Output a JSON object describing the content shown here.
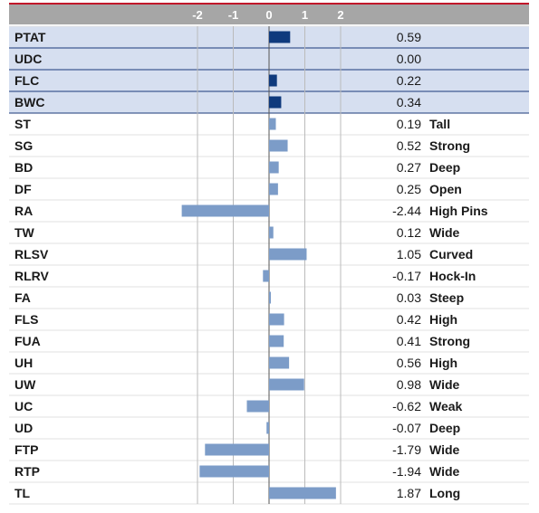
{
  "chart_data": {
    "type": "bar",
    "orientation": "horizontal",
    "xlim": [
      -2.5,
      2.5
    ],
    "xticks": [
      -2,
      -1,
      0,
      1,
      2
    ],
    "xtick_labels": [
      "-2",
      "-1",
      "0",
      "1",
      "2"
    ],
    "categories": [
      "PTAT",
      "UDC",
      "FLC",
      "BWC",
      "ST",
      "SG",
      "BD",
      "DF",
      "RA",
      "TW",
      "RLSV",
      "RLRV",
      "FA",
      "FLS",
      "FUA",
      "UH",
      "UW",
      "UC",
      "UD",
      "FTP",
      "RTP",
      "TL"
    ],
    "values": [
      0.59,
      0.0,
      0.22,
      0.34,
      0.19,
      0.52,
      0.27,
      0.25,
      -2.44,
      0.12,
      1.05,
      -0.17,
      0.03,
      0.42,
      0.41,
      0.56,
      0.98,
      -0.62,
      -0.07,
      -1.79,
      -1.94,
      1.87
    ],
    "value_labels": [
      "0.59",
      "0.00",
      "0.22",
      "0.34",
      "0.19",
      "0.52",
      "0.27",
      "0.25",
      "-2.44",
      "0.12",
      "1.05",
      "-0.17",
      "0.03",
      "0.42",
      "0.41",
      "0.56",
      "0.98",
      "-0.62",
      "-0.07",
      "-1.79",
      "-1.94",
      "1.87"
    ],
    "descriptors": [
      "",
      "",
      "",
      "",
      "Tall",
      "Strong",
      "Deep",
      "Open",
      "High Pins",
      "Wide",
      "Curved",
      "Hock-In",
      "Steep",
      "High",
      "Strong",
      "High",
      "Wide",
      "Weak",
      "Deep",
      "Wide",
      "Wide",
      "Long"
    ],
    "highlighted_rows": 4,
    "grid": true,
    "colors": {
      "header_bg": "#a6a6a6",
      "header_top_line": "#c0152a",
      "highlight_bg": "#d6dff0",
      "highlight_bar": "#0f3a7d",
      "bar": "#7c9cc8",
      "row_border": "#1b3a7a",
      "grid": "#bbbbbb",
      "zero_line": "#555555"
    }
  }
}
